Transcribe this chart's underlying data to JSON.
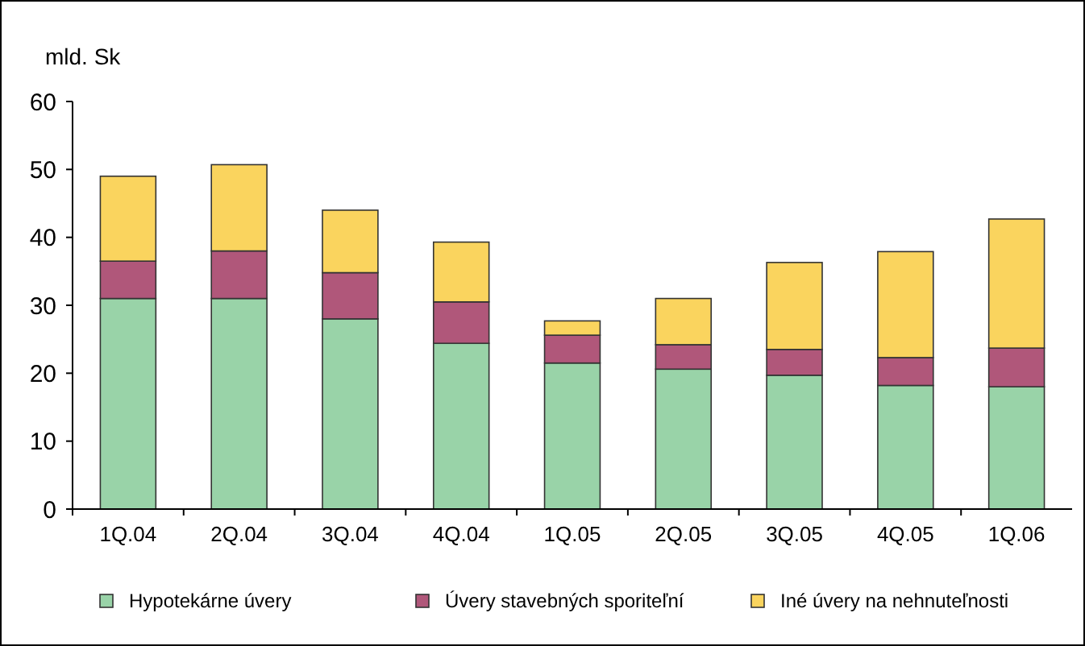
{
  "chart_data": {
    "type": "bar",
    "stacked": true,
    "ylabel": "mld. Sk",
    "categories": [
      "1Q.04",
      "2Q.04",
      "3Q.04",
      "4Q.04",
      "1Q.05",
      "2Q.05",
      "3Q.05",
      "4Q.05",
      "1Q.06"
    ],
    "series": [
      {
        "name": "Hypotekárne úvery",
        "color": "#99d3a8",
        "values": [
          31,
          31,
          28,
          24.4,
          21.5,
          20.6,
          19.7,
          18.2,
          18
        ]
      },
      {
        "name": "Úvery stavebných sporiteľní",
        "color": "#b0577a",
        "values": [
          5.5,
          7,
          6.8,
          6.1,
          4.1,
          3.6,
          3.8,
          4.1,
          5.7
        ]
      },
      {
        "name": "Iné úvery na nehnuteľnosti",
        "color": "#fad45e",
        "values": [
          12.5,
          12.7,
          9.2,
          8.8,
          2.1,
          6.8,
          12.8,
          15.6,
          19
        ]
      }
    ],
    "ylim": [
      0,
      60
    ],
    "yticks": [
      0,
      10,
      20,
      30,
      40,
      50,
      60
    ],
    "grid": false,
    "legend": "bottom"
  }
}
